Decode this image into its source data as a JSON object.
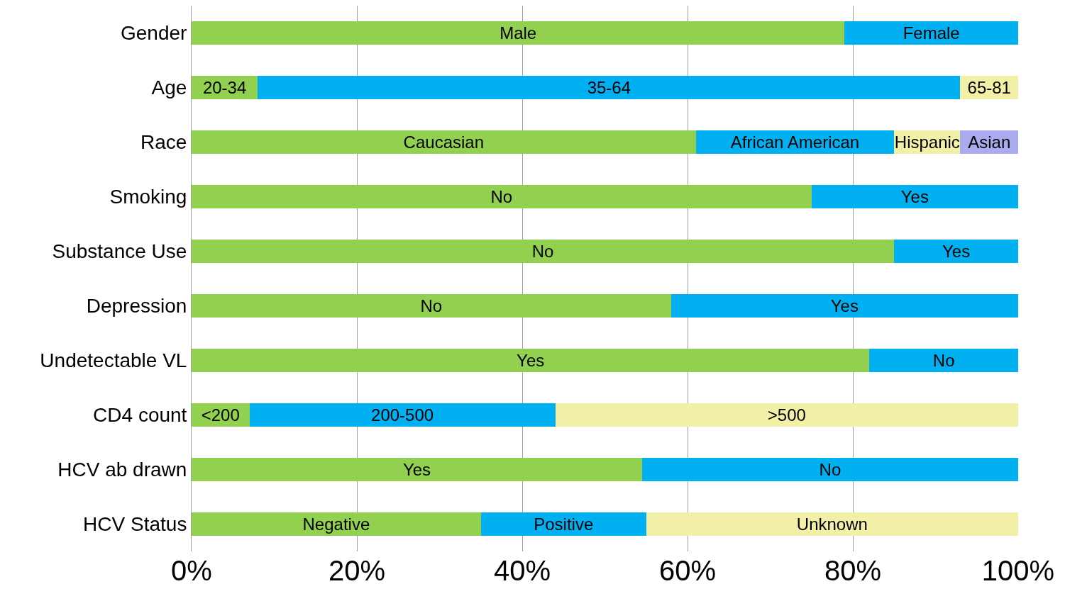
{
  "chart_data": {
    "type": "bar",
    "orientation": "horizontal",
    "stacked": true,
    "categories": [
      "Gender",
      "Age",
      "Race",
      "Smoking",
      "Substance Use",
      "Depression",
      "Undetectable VL",
      "CD4 count",
      "HCV ab drawn",
      "HCV Status"
    ],
    "series": [
      {
        "color": "#92d050",
        "values": [
          79,
          8,
          61,
          75,
          85,
          58,
          82,
          7,
          54.5,
          35
        ],
        "value_labels": [
          "Male",
          "20-34",
          "Caucasian",
          "No",
          "No",
          "No",
          "Yes",
          "<200",
          "Yes",
          "Negative"
        ]
      },
      {
        "color": "#00b0f0",
        "values": [
          21,
          85,
          24,
          25,
          15,
          42,
          18,
          37,
          45.5,
          20
        ],
        "value_labels": [
          "Female",
          "35-64",
          "African American",
          "Yes",
          "Yes",
          "Yes",
          "No",
          "200-500",
          "No",
          "Positive"
        ]
      },
      {
        "color": "#f2f0a6",
        "values": [
          null,
          7,
          8,
          null,
          null,
          null,
          null,
          56,
          null,
          45
        ],
        "value_labels": [
          null,
          "65-81",
          "Hispanic",
          null,
          null,
          null,
          null,
          ">500",
          null,
          "Unknown"
        ]
      },
      {
        "color": "#aaaaee",
        "values": [
          null,
          null,
          7,
          null,
          null,
          null,
          null,
          null,
          null,
          null
        ],
        "value_labels": [
          null,
          null,
          "Asian",
          null,
          null,
          null,
          null,
          null,
          null,
          null
        ]
      }
    ],
    "xlim": [
      0,
      100
    ],
    "xticks": [
      {
        "value": 0,
        "label": "0%"
      },
      {
        "value": 20,
        "label": "20%"
      },
      {
        "value": 40,
        "label": "40%"
      },
      {
        "value": 60,
        "label": "60%"
      },
      {
        "value": 80,
        "label": "80%"
      },
      {
        "value": 100,
        "label": "100%"
      }
    ],
    "grid": "x"
  }
}
